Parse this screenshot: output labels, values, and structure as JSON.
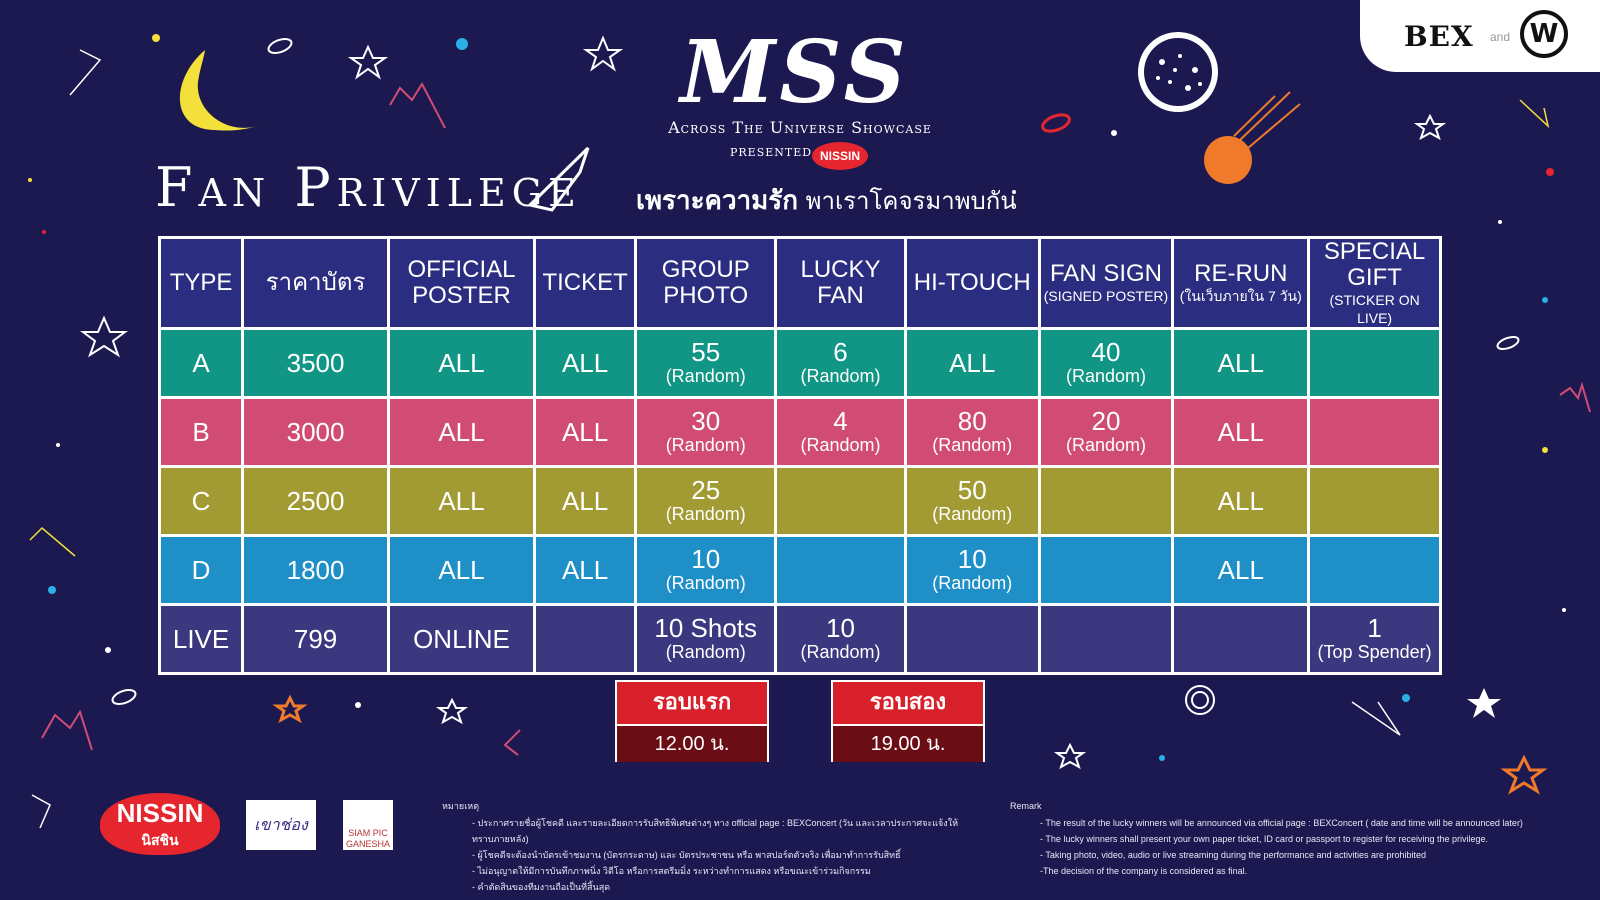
{
  "branding": {
    "bex_label": "BEX",
    "and_label": "and",
    "w_mark": "W",
    "show_title": "MSS",
    "show_subtitle": "Across The Universe Showcase",
    "presented_by": "PRESENTED BY",
    "sponsor_mark": "NISSIN",
    "slogan_bold": "เพราะความรัก",
    "slogan_rest": "พาเราโคจรมาพบกัน"
  },
  "section_title": "Fan Privilege",
  "table": {
    "headers": [
      {
        "label": "TYPE",
        "sub": ""
      },
      {
        "label": "ราคาบัตร",
        "sub": ""
      },
      {
        "label": "OFFICIAL POSTER",
        "sub": ""
      },
      {
        "label": "TICKET",
        "sub": ""
      },
      {
        "label": "GROUP PHOTO",
        "sub": ""
      },
      {
        "label": "LUCKY FAN",
        "sub": ""
      },
      {
        "label": "HI-TOUCH",
        "sub": ""
      },
      {
        "label": "FAN SIGN",
        "sub": "(SIGNED POSTER)"
      },
      {
        "label": "RE-RUN",
        "sub": "(ในเว็บภายใน 7 วัน)"
      },
      {
        "label": "SPECIAL GIFT",
        "sub": "(STICKER ON LIVE)"
      }
    ],
    "rows": [
      {
        "cells": [
          {
            "v": "A",
            "n": ""
          },
          {
            "v": "3500",
            "n": ""
          },
          {
            "v": "ALL",
            "n": ""
          },
          {
            "v": "ALL",
            "n": ""
          },
          {
            "v": "55",
            "n": "(Random)"
          },
          {
            "v": "6",
            "n": "(Random)"
          },
          {
            "v": "ALL",
            "n": ""
          },
          {
            "v": "40",
            "n": "(Random)"
          },
          {
            "v": "ALL",
            "n": ""
          },
          {
            "v": "",
            "n": ""
          }
        ]
      },
      {
        "cells": [
          {
            "v": "B",
            "n": ""
          },
          {
            "v": "3000",
            "n": ""
          },
          {
            "v": "ALL",
            "n": ""
          },
          {
            "v": "ALL",
            "n": ""
          },
          {
            "v": "30",
            "n": "(Random)"
          },
          {
            "v": "4",
            "n": "(Random)"
          },
          {
            "v": "80",
            "n": "(Random)"
          },
          {
            "v": "20",
            "n": "(Random)"
          },
          {
            "v": "ALL",
            "n": ""
          },
          {
            "v": "",
            "n": ""
          }
        ]
      },
      {
        "cells": [
          {
            "v": "C",
            "n": ""
          },
          {
            "v": "2500",
            "n": ""
          },
          {
            "v": "ALL",
            "n": ""
          },
          {
            "v": "ALL",
            "n": ""
          },
          {
            "v": "25",
            "n": "(Random)"
          },
          {
            "v": "",
            "n": ""
          },
          {
            "v": "50",
            "n": "(Random)"
          },
          {
            "v": "",
            "n": ""
          },
          {
            "v": "ALL",
            "n": ""
          },
          {
            "v": "",
            "n": ""
          }
        ]
      },
      {
        "cells": [
          {
            "v": "D",
            "n": ""
          },
          {
            "v": "1800",
            "n": ""
          },
          {
            "v": "ALL",
            "n": ""
          },
          {
            "v": "ALL",
            "n": ""
          },
          {
            "v": "10",
            "n": "(Random)"
          },
          {
            "v": "",
            "n": ""
          },
          {
            "v": "10",
            "n": "(Random)"
          },
          {
            "v": "",
            "n": ""
          },
          {
            "v": "ALL",
            "n": ""
          },
          {
            "v": "",
            "n": ""
          }
        ]
      },
      {
        "cells": [
          {
            "v": "LIVE",
            "n": ""
          },
          {
            "v": "799",
            "n": ""
          },
          {
            "v": "ONLINE",
            "n": ""
          },
          {
            "v": "",
            "n": ""
          },
          {
            "v": "10 Shots",
            "n": "(Random)"
          },
          {
            "v": "10",
            "n": "(Random)"
          },
          {
            "v": "",
            "n": ""
          },
          {
            "v": "",
            "n": ""
          },
          {
            "v": "",
            "n": ""
          },
          {
            "v": "1",
            "n": "(Top Spender)"
          }
        ]
      }
    ]
  },
  "rounds": [
    {
      "label": "รอบแรก",
      "time": "12.00 น."
    },
    {
      "label": "รอบสอง",
      "time": "19.00 น."
    }
  ],
  "sponsors": {
    "nissin_en": "NISSIN",
    "nissin_th": "นิสชิน",
    "khao_chong": "เขาช่อง",
    "siam_ganesha": "SIAM PIC GANESHA"
  },
  "remarks_th": {
    "heading": "หมายเหตุ",
    "items": [
      "- ประกาศรายชื่อผู้โชคดี และรายละเอียดการรับสิทธิพิเศษต่างๆ ทาง official page : BEXConcert (วัน และเวลาประกาศจะแจ้งให้ทราบภายหลัง)",
      "- ผู้โชคดีจะต้องนำบัตรเข้าชมงาน (บัตรกระดาษ) และ บัตรประชาชน หรือ พาสปอร์ตตัวจริง เพื่อมาทำการรับสิทธิ์",
      "- ไม่อนุญาตให้มีการบันทึกภาพนิ่ง วิดีโอ หรือการสตรีมมิ่ง ระหว่างทำการแสดง หรือขณะเข้าร่วมกิจกรรม",
      "- คำตัดสินของทีมงานถือเป็นที่สิ้นสุด"
    ]
  },
  "remarks_en": {
    "heading": "Remark",
    "items": [
      "- The result of the lucky winners will be announced via official page : BEXConcert ( date and time will be announced later)",
      "- The lucky winners shall present your own paper ticket, ID card or passport to register for receiving the privilege.",
      "- Taking photo, video, audio or live streaming during the performance and activities are prohibited",
      "-The decision of the company is considered as final."
    ]
  },
  "colors": {
    "background": "#1c1950",
    "header": "#2b2d80",
    "row_a": "#119686",
    "row_b": "#d14c75",
    "row_c": "#a29a32",
    "row_d": "#1f8fc8",
    "row_live": "#3c3880",
    "round_label": "#d7202a",
    "round_time": "#6b0d14"
  }
}
